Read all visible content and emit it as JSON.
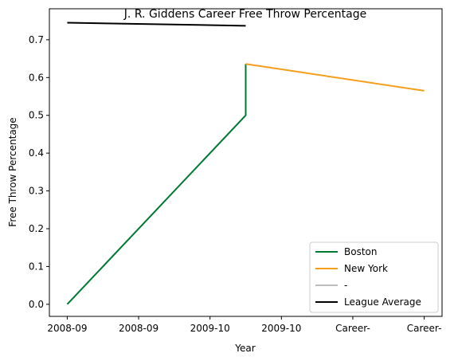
{
  "chart_data": {
    "type": "line",
    "title": "J. R. Giddens Career Free Throw Percentage",
    "xlabel": "Year",
    "ylabel": "Free Throw Percentage",
    "x_tick_labels": [
      "2008-09",
      "2008-09",
      "2009-10",
      "2009-10",
      "Career-",
      "Career-"
    ],
    "y_ticks": [
      0.0,
      0.1,
      0.2,
      0.3,
      0.4,
      0.5,
      0.6,
      0.7
    ],
    "y_tick_labels": [
      "0.0",
      "0.1",
      "0.2",
      "0.3",
      "0.4",
      "0.5",
      "0.6",
      "0.7"
    ],
    "xlim": [
      -0.25,
      5.25
    ],
    "ylim": [
      -0.032,
      0.782
    ],
    "grid": false,
    "legend_position": "lower-right",
    "series": [
      {
        "name": "Boston",
        "color": "#007a33",
        "points": [
          [
            0,
            0.0
          ],
          [
            2.5,
            0.5
          ],
          [
            2.5,
            0.636
          ]
        ]
      },
      {
        "name": "New York",
        "color": "#f59e1b",
        "points": [
          [
            2.5,
            0.636
          ],
          [
            5,
            0.565
          ]
        ]
      },
      {
        "name": "-",
        "color": "#bdbdbd",
        "points": []
      },
      {
        "name": "League Average",
        "color": "#000000",
        "points": [
          [
            0,
            0.745
          ],
          [
            2.5,
            0.737
          ]
        ]
      }
    ]
  }
}
